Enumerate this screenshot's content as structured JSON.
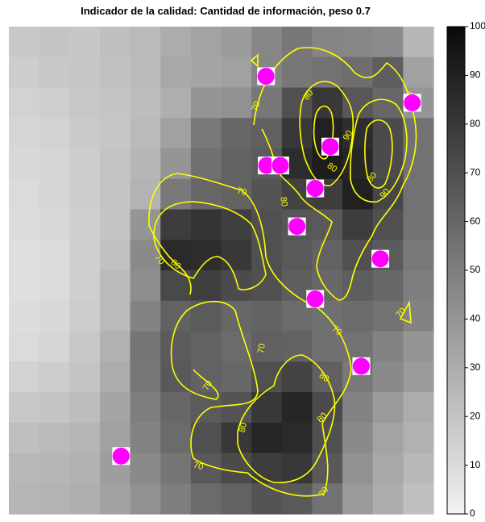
{
  "chart_data": {
    "type": "heatmap",
    "title": "Indicador de la calidad: Cantidad de información, peso 0.7",
    "colorbar": {
      "min": 0,
      "max": 100,
      "ticks": [
        "0",
        "10",
        "20",
        "30",
        "40",
        "50",
        "60",
        "70",
        "80",
        "90",
        "100"
      ],
      "low_color": "#f2f2f2",
      "high_color": "#0a0a0a"
    },
    "contour_color": "#ffff00",
    "marker_color": "#ff00ff",
    "contour_labels": [
      "70",
      "70",
      "70",
      "70",
      "70",
      "70",
      "70",
      "70",
      "70",
      "70",
      "80",
      "80",
      "80",
      "80",
      "80",
      "80",
      "80",
      "80",
      "90",
      "90",
      "90"
    ],
    "grid": {
      "rows": 16,
      "cols": 14,
      "values": [
        [
          18,
          20,
          19,
          22,
          24,
          30,
          34,
          37,
          46,
          53,
          47,
          46,
          44,
          26
        ],
        [
          16,
          18,
          19,
          21,
          24,
          32,
          33,
          35,
          47,
          53,
          55,
          57,
          64,
          35
        ],
        [
          14,
          15,
          18,
          20,
          23,
          29,
          40,
          42,
          53,
          70,
          80,
          67,
          60,
          40
        ],
        [
          12,
          14,
          17,
          19,
          24,
          35,
          52,
          60,
          63,
          80,
          90,
          85,
          72,
          55
        ],
        [
          11,
          12,
          16,
          20,
          26,
          40,
          56,
          62,
          65,
          85,
          92,
          88,
          72,
          55
        ],
        [
          10,
          12,
          16,
          20,
          27,
          52,
          60,
          62,
          68,
          76,
          78,
          90,
          74,
          55
        ],
        [
          9,
          11,
          15,
          20,
          40,
          78,
          82,
          77,
          70,
          67,
          66,
          78,
          70,
          55
        ],
        [
          8,
          10,
          15,
          21,
          45,
          86,
          85,
          80,
          70,
          66,
          62,
          70,
          65,
          52
        ],
        [
          8,
          10,
          15,
          24,
          43,
          73,
          77,
          72,
          70,
          64,
          60,
          64,
          60,
          50
        ],
        [
          9,
          11,
          16,
          24,
          48,
          62,
          65,
          60,
          62,
          58,
          56,
          58,
          55,
          48
        ],
        [
          10,
          12,
          18,
          28,
          54,
          65,
          62,
          58,
          63,
          62,
          56,
          55,
          48,
          40
        ],
        [
          14,
          16,
          20,
          30,
          53,
          66,
          62,
          60,
          70,
          75,
          63,
          52,
          45,
          38
        ],
        [
          18,
          20,
          23,
          33,
          50,
          60,
          65,
          68,
          80,
          88,
          72,
          48,
          38,
          30
        ],
        [
          22,
          24,
          26,
          35,
          48,
          58,
          70,
          80,
          88,
          86,
          70,
          45,
          34,
          28
        ],
        [
          25,
          26,
          28,
          36,
          45,
          54,
          66,
          72,
          78,
          80,
          66,
          42,
          32,
          25
        ],
        [
          26,
          27,
          29,
          35,
          42,
          50,
          58,
          62,
          68,
          66,
          55,
          38,
          30,
          22
        ]
      ]
    },
    "markers": [
      {
        "col": 8.48,
        "row": 1.63
      },
      {
        "col": 13.3,
        "row": 2.5
      },
      {
        "col": 10.6,
        "row": 3.94
      },
      {
        "col": 8.5,
        "row": 4.56
      },
      {
        "col": 8.95,
        "row": 4.56
      },
      {
        "col": 10.1,
        "row": 5.31
      },
      {
        "col": 9.5,
        "row": 6.56
      },
      {
        "col": 12.25,
        "row": 7.62
      },
      {
        "col": 10.1,
        "row": 8.94
      },
      {
        "col": 11.62,
        "row": 11.15
      },
      {
        "col": 3.7,
        "row": 14.1
      }
    ]
  }
}
